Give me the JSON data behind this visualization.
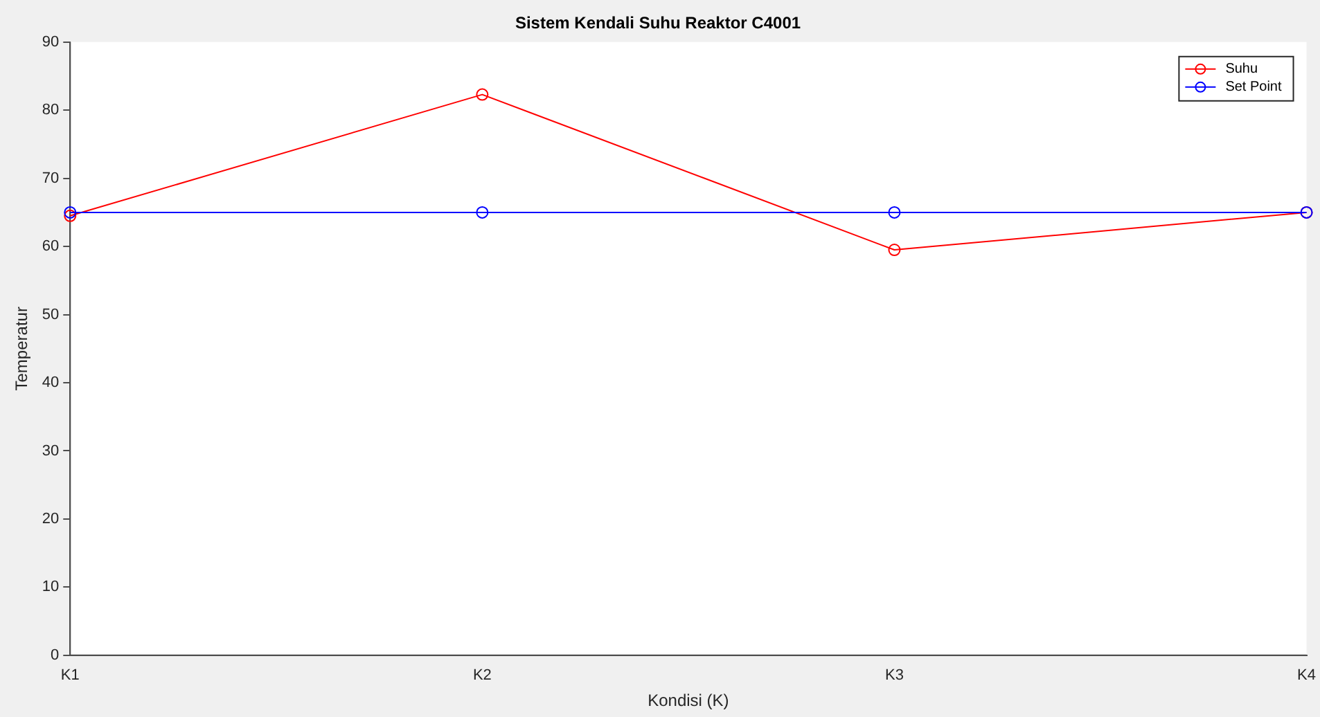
{
  "chart_data": {
    "type": "line",
    "title": "Sistem Kendali Suhu Reaktor C4001",
    "xlabel": "Kondisi (K)",
    "ylabel": "Temperatur",
    "categories": [
      "K1",
      "K2",
      "K3",
      "K4"
    ],
    "series": [
      {
        "name": "Suhu",
        "color": "#ff0000",
        "values": [
          64.5,
          82.3,
          59.5,
          65
        ]
      },
      {
        "name": "Set Point",
        "color": "#0000ff",
        "values": [
          65,
          65,
          65,
          65
        ]
      }
    ],
    "ylim": [
      0,
      90
    ],
    "yticks": [
      0,
      10,
      20,
      30,
      40,
      50,
      60,
      70,
      80,
      90
    ],
    "grid": false,
    "legend": "top right",
    "marker": "circle",
    "line_style": "solid"
  }
}
